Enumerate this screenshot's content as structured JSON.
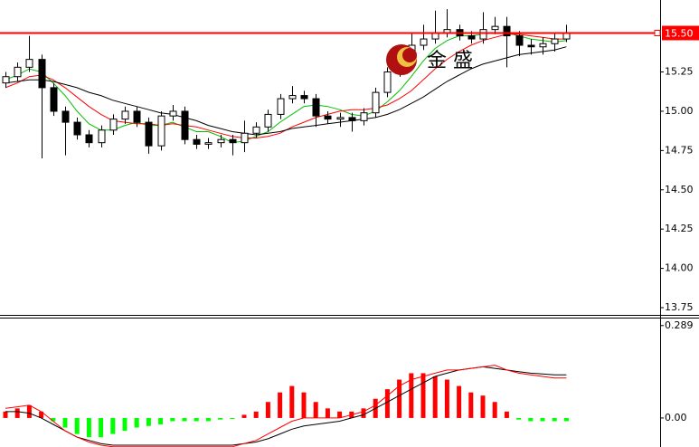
{
  "chart_data": [
    {
      "type": "candlestick",
      "watermark": "金 盛",
      "open": [
        15.18,
        15.22,
        15.28,
        15.33,
        15.15,
        15.0,
        14.93,
        14.85,
        14.8,
        14.88,
        14.95,
        15.0,
        14.93,
        14.78,
        14.97,
        15.0,
        14.82,
        14.79,
        14.8,
        14.82,
        14.8,
        14.86,
        14.9,
        14.98,
        15.08,
        15.1,
        15.08,
        14.97,
        14.95,
        14.96,
        14.94,
        14.99,
        15.12,
        15.25,
        15.35,
        15.42,
        15.46,
        15.5,
        15.52,
        15.48,
        15.46,
        15.52,
        15.54,
        15.48,
        15.42,
        15.41,
        15.43,
        15.46
      ],
      "high": [
        15.25,
        15.31,
        15.48,
        15.36,
        15.18,
        15.03,
        14.96,
        14.88,
        14.91,
        14.98,
        15.03,
        15.03,
        14.96,
        15.0,
        15.04,
        15.03,
        14.85,
        14.83,
        14.85,
        14.85,
        14.94,
        14.93,
        15.01,
        15.11,
        15.16,
        15.13,
        15.11,
        15.0,
        14.99,
        14.99,
        15.02,
        15.15,
        15.28,
        15.38,
        15.5,
        15.55,
        15.64,
        15.65,
        15.55,
        15.51,
        15.63,
        15.6,
        15.6,
        15.51,
        15.46,
        15.47,
        15.5,
        15.55
      ],
      "low": [
        15.15,
        15.19,
        15.25,
        14.7,
        14.97,
        14.72,
        14.82,
        14.77,
        14.77,
        14.85,
        14.92,
        14.9,
        14.73,
        14.75,
        14.94,
        14.79,
        14.76,
        14.76,
        14.77,
        14.72,
        14.74,
        14.83,
        14.87,
        14.95,
        15.05,
        15.05,
        14.9,
        14.92,
        14.9,
        14.87,
        14.91,
        14.96,
        15.09,
        15.22,
        15.32,
        15.39,
        15.43,
        15.47,
        15.45,
        15.43,
        15.43,
        15.49,
        15.28,
        15.35,
        15.36,
        15.36,
        15.38,
        15.44
      ],
      "close": [
        15.22,
        15.28,
        15.33,
        15.15,
        15.0,
        14.93,
        14.85,
        14.8,
        14.88,
        14.95,
        15.0,
        14.93,
        14.78,
        14.97,
        15.0,
        14.82,
        14.79,
        14.8,
        14.82,
        14.8,
        14.86,
        14.9,
        14.98,
        15.08,
        15.1,
        15.08,
        14.97,
        14.95,
        14.96,
        14.94,
        14.99,
        15.12,
        15.25,
        15.35,
        15.42,
        15.46,
        15.5,
        15.52,
        15.48,
        15.46,
        15.52,
        15.54,
        15.48,
        15.42,
        15.41,
        15.43,
        15.46,
        15.5
      ],
      "up_color": "#ffffff",
      "down_color": "#000000",
      "outline_color": "#000000",
      "series": [
        {
          "color": "#00c000",
          "values": [
            15.2,
            15.23,
            15.27,
            15.25,
            15.18,
            15.1,
            15.0,
            14.92,
            14.88,
            14.88,
            14.91,
            14.93,
            14.91,
            14.91,
            14.93,
            14.9,
            14.87,
            14.87,
            14.84,
            14.8,
            14.81,
            14.84,
            14.87,
            14.93,
            14.98,
            15.03,
            15.04,
            15.03,
            15.01,
            14.98,
            14.97,
            15.0,
            15.06,
            15.13,
            15.22,
            15.32,
            15.4,
            15.45,
            15.48,
            15.48,
            15.49,
            15.5,
            15.5,
            15.48,
            15.46,
            15.45,
            15.44,
            15.45
          ]
        },
        {
          "color": "#ff0000",
          "values": [
            15.15,
            15.18,
            15.22,
            15.23,
            15.2,
            15.15,
            15.09,
            15.03,
            14.98,
            14.94,
            14.93,
            14.92,
            14.92,
            14.91,
            14.92,
            14.91,
            14.9,
            14.88,
            14.86,
            14.84,
            14.83,
            14.83,
            14.84,
            14.86,
            14.9,
            14.93,
            14.96,
            14.98,
            15.0,
            15.01,
            15.01,
            15.02,
            15.04,
            15.08,
            15.13,
            15.2,
            15.27,
            15.33,
            15.38,
            15.42,
            15.45,
            15.47,
            15.49,
            15.49,
            15.48,
            15.47,
            15.46,
            15.46
          ]
        },
        {
          "color": "#000000",
          "values": [
            15.18,
            15.19,
            15.2,
            15.2,
            15.19,
            15.17,
            15.15,
            15.12,
            15.1,
            15.07,
            15.05,
            15.03,
            15.01,
            14.99,
            14.98,
            14.96,
            14.94,
            14.91,
            14.89,
            14.87,
            14.86,
            14.85,
            14.86,
            14.87,
            14.89,
            14.9,
            14.91,
            14.92,
            14.93,
            14.94,
            14.95,
            14.96,
            14.98,
            15.01,
            15.05,
            15.09,
            15.14,
            15.19,
            15.23,
            15.27,
            15.3,
            15.32,
            15.34,
            15.36,
            15.37,
            15.38,
            15.39,
            15.41
          ]
        }
      ],
      "ylim": [
        13.704,
        15.708
      ],
      "yticks": [
        13.75,
        {
          "value": 14.0,
          "label": "14.00"
        },
        14.25,
        {
          "value": 14.5,
          "label": "14.50"
        },
        14.75,
        {
          "value": 15.0,
          "label": "15.00"
        },
        15.25
      ],
      "price_line": {
        "value": 15.5,
        "label": "15.50",
        "color": "#ff0000"
      }
    },
    {
      "type": "bar",
      "values": [
        0.02,
        0.03,
        0.04,
        0.02,
        -0.01,
        -0.03,
        -0.05,
        -0.06,
        -0.06,
        -0.05,
        -0.04,
        -0.03,
        -0.025,
        -0.02,
        -0.01,
        -0.01,
        -0.01,
        -0.01,
        -0.005,
        -0.003,
        0.01,
        0.02,
        0.05,
        0.08,
        0.1,
        0.08,
        0.05,
        0.03,
        0.02,
        0.02,
        0.03,
        0.06,
        0.09,
        0.12,
        0.14,
        0.14,
        0.13,
        0.12,
        0.1,
        0.08,
        0.07,
        0.05,
        0.02,
        -0.005,
        -0.01,
        -0.01,
        -0.01,
        -0.01
      ],
      "positive_color": "#ff0000",
      "negative_color": "#00ff00",
      "series": [
        {
          "color": "#000000",
          "values": [
            0.02,
            0.02,
            0.015,
            0.0,
            -0.02,
            -0.04,
            -0.06,
            -0.07,
            -0.08,
            -0.085,
            -0.085,
            -0.085,
            -0.085,
            -0.085,
            -0.085,
            -0.085,
            -0.085,
            -0.085,
            -0.085,
            -0.085,
            -0.08,
            -0.075,
            -0.065,
            -0.05,
            -0.035,
            -0.025,
            -0.02,
            -0.015,
            -0.01,
            0.0,
            0.01,
            0.03,
            0.05,
            0.07,
            0.09,
            0.11,
            0.13,
            0.14,
            0.15,
            0.155,
            0.16,
            0.155,
            0.15,
            0.145,
            0.14,
            0.138,
            0.135,
            0.135
          ]
        },
        {
          "color": "#ff0000",
          "values": [
            0.03,
            0.035,
            0.04,
            0.02,
            -0.01,
            -0.04,
            -0.06,
            -0.075,
            -0.085,
            -0.09,
            -0.09,
            -0.09,
            -0.09,
            -0.09,
            -0.09,
            -0.09,
            -0.09,
            -0.09,
            -0.09,
            -0.09,
            -0.08,
            -0.07,
            -0.05,
            -0.03,
            -0.01,
            0.0,
            0.0,
            0.0,
            0.0,
            0.01,
            0.02,
            0.04,
            0.07,
            0.1,
            0.12,
            0.13,
            0.14,
            0.15,
            0.15,
            0.155,
            0.16,
            0.165,
            0.15,
            0.14,
            0.135,
            0.13,
            0.125,
            0.125
          ]
        }
      ],
      "ylim": [
        -0.0907,
        0.311
      ],
      "yticks": [
        {
          "value": 0.0,
          "label": "0.00"
        },
        0.289
      ]
    }
  ]
}
